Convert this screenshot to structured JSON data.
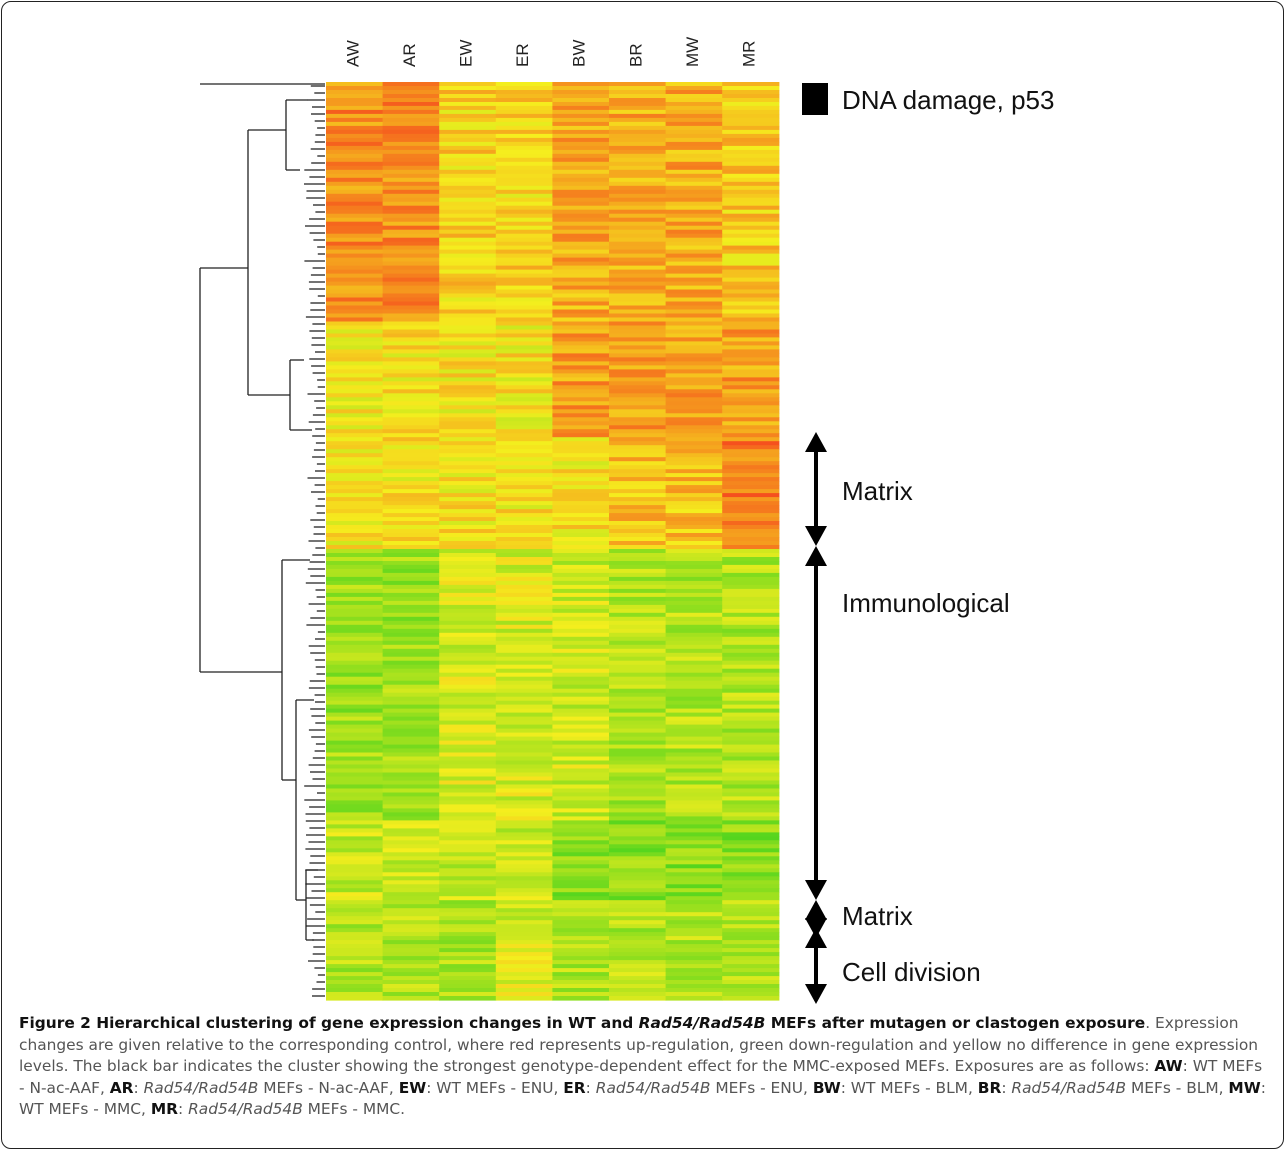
{
  "figure": {
    "columns": [
      "AW",
      "AR",
      "EW",
      "ER",
      "BW",
      "BR",
      "MW",
      "MR"
    ],
    "cluster_labels": {
      "dna_damage": "DNA damage, p53",
      "matrix_top": "Matrix",
      "immunological": "Immunological",
      "matrix_bottom": "Matrix",
      "cell_division": "Cell division"
    },
    "colors": {
      "up_regulation": "#e03a10",
      "no_change": "#f4f040",
      "down_regulation": "#2fbf20",
      "bar": "#000000"
    }
  },
  "caption": {
    "title_prefix": "Figure 2 Hierarchical clustering of gene expression changes in WT and ",
    "title_italic": "Rad54/Rad54B",
    "title_suffix": " MEFs after mutagen or clastogen exposure",
    "title_end": ".",
    "body": "Expression changes are given relative to the corresponding control, where red represents up-regulation, green down-regulation and yellow no difference in gene expression levels. The black bar indicates the cluster showing the strongest genotype-dependent effect for the MMC-exposed MEFs. Exposures are as follows: ",
    "exposures": [
      {
        "code": "AW",
        "desc": ": WT MEFs - N-ac-AAF, "
      },
      {
        "code": "AR",
        "italic": "Rad54/Rad54B",
        "desc": " MEFs - N-ac-AAF, "
      },
      {
        "code": "EW",
        "desc": ": WT MEFs - ENU, "
      },
      {
        "code": "ER",
        "italic": "Rad54/Rad54B",
        "desc": " MEFs - ENU, "
      },
      {
        "code": "BW",
        "desc": ": WT MEFs - BLM, "
      },
      {
        "code": "BR",
        "italic": "Rad54/Rad54B",
        "desc": " MEFs - BLM, "
      },
      {
        "code": "MW",
        "desc": ": WT MEFs - MMC, "
      },
      {
        "code": "MR",
        "italic": "Rad54/Rad54B",
        "desc": " MEFs - MMC."
      }
    ]
  }
}
